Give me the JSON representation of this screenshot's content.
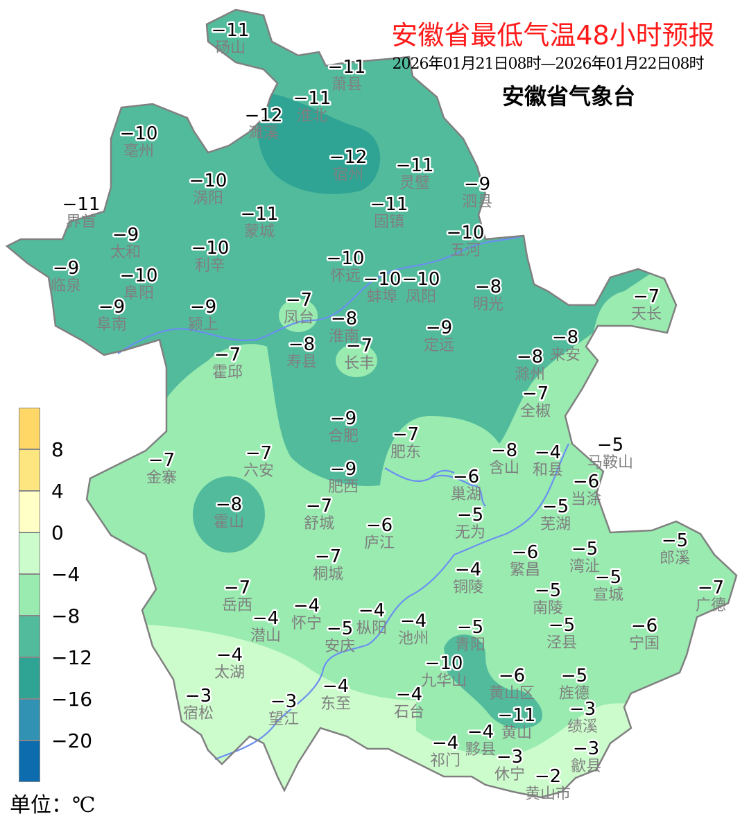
{
  "header": {
    "title": "安徽省最低气温48小时预报",
    "period": "2026年01月21日08时—2026年01月22日08时",
    "issuer": "安徽省气象台"
  },
  "legend": {
    "unit": "单位：℃",
    "ticks": [
      "8",
      "4",
      "0",
      "−4",
      "−8",
      "−12",
      "−16",
      "−20"
    ],
    "colors": [
      "#fed766",
      "#fde680",
      "#ffffc6",
      "#ccfccc",
      "#99ebb0",
      "#52bb9c",
      "#2fa394",
      "#3292b4",
      "#0d6cae"
    ]
  },
  "river_color": "#6b8ff0",
  "stations": [
    {
      "name": "砀山",
      "value": -11
    },
    {
      "name": "萧县",
      "value": -11
    },
    {
      "name": "淮北",
      "value": -11
    },
    {
      "name": "濉溪",
      "value": -12
    },
    {
      "name": "亳州",
      "value": -10
    },
    {
      "name": "宿州",
      "value": -12
    },
    {
      "name": "灵璧",
      "value": -11
    },
    {
      "name": "涡阳",
      "value": -10
    },
    {
      "name": "泗县",
      "value": -9
    },
    {
      "name": "界首",
      "value": -11
    },
    {
      "name": "固镇",
      "value": -11
    },
    {
      "name": "蒙城",
      "value": -11
    },
    {
      "name": "太和",
      "value": -9
    },
    {
      "name": "五河",
      "value": -10
    },
    {
      "name": "利辛",
      "value": -10
    },
    {
      "name": "怀远",
      "value": -10
    },
    {
      "name": "临泉",
      "value": -9
    },
    {
      "name": "阜阳",
      "value": -10
    },
    {
      "name": "蚌埠",
      "value": -10
    },
    {
      "name": "凤阳",
      "value": -10
    },
    {
      "name": "明光",
      "value": -8
    },
    {
      "name": "天长",
      "value": -7
    },
    {
      "name": "凤台",
      "value": -7
    },
    {
      "name": "阜南",
      "value": -9
    },
    {
      "name": "颍上",
      "value": -9
    },
    {
      "name": "淮南",
      "value": -8
    },
    {
      "name": "定远",
      "value": -9
    },
    {
      "name": "寿县",
      "value": -8
    },
    {
      "name": "长丰",
      "value": -7
    },
    {
      "name": "来安",
      "value": -8
    },
    {
      "name": "霍邱",
      "value": -7
    },
    {
      "name": "滁州",
      "value": -8
    },
    {
      "name": "全椒",
      "value": -7
    },
    {
      "name": "合肥",
      "value": -9
    },
    {
      "name": "肥东",
      "value": -7
    },
    {
      "name": "六安",
      "value": -7
    },
    {
      "name": "含山",
      "value": -8
    },
    {
      "name": "和县",
      "value": -4
    },
    {
      "name": "马鞍山",
      "value": -5
    },
    {
      "name": "金寨",
      "value": -7
    },
    {
      "name": "当涂",
      "value": -6
    },
    {
      "name": "巢湖",
      "value": -6
    },
    {
      "name": "肥西",
      "value": -9
    },
    {
      "name": "舒城",
      "value": -7
    },
    {
      "name": "芜湖",
      "value": -5
    },
    {
      "name": "霍山",
      "value": -8
    },
    {
      "name": "无为",
      "value": -5
    },
    {
      "name": "庐江",
      "value": -6
    },
    {
      "name": "湾沚",
      "value": -5
    },
    {
      "name": "郎溪",
      "value": -5
    },
    {
      "name": "繁昌",
      "value": -6
    },
    {
      "name": "桐城",
      "value": -7
    },
    {
      "name": "铜陵",
      "value": -4
    },
    {
      "name": "南陵",
      "value": -5
    },
    {
      "name": "宣城",
      "value": -5
    },
    {
      "name": "广德",
      "value": -7
    },
    {
      "name": "岳西",
      "value": -7
    },
    {
      "name": "怀宁",
      "value": -4
    },
    {
      "name": "潜山",
      "value": -4
    },
    {
      "name": "枞阳",
      "value": -4
    },
    {
      "name": "安庆",
      "value": -5
    },
    {
      "name": "池州",
      "value": -4
    },
    {
      "name": "青阳",
      "value": -5
    },
    {
      "name": "泾县",
      "value": -5
    },
    {
      "name": "宁国",
      "value": -6
    },
    {
      "name": "九华山",
      "value": -10
    },
    {
      "name": "太湖",
      "value": -4
    },
    {
      "name": "黄山区",
      "value": -6
    },
    {
      "name": "旌德",
      "value": -5
    },
    {
      "name": "宿松",
      "value": -3
    },
    {
      "name": "望江",
      "value": -3
    },
    {
      "name": "东至",
      "value": -4
    },
    {
      "name": "石台",
      "value": -4
    },
    {
      "name": "黄山",
      "value": -11
    },
    {
      "name": "绩溪",
      "value": -3
    },
    {
      "name": "祁门",
      "value": -4
    },
    {
      "name": "黟县",
      "value": -4
    },
    {
      "name": "歙县",
      "value": -3
    },
    {
      "name": "休宁",
      "value": -3
    },
    {
      "name": "黄山市",
      "value": -2
    }
  ]
}
